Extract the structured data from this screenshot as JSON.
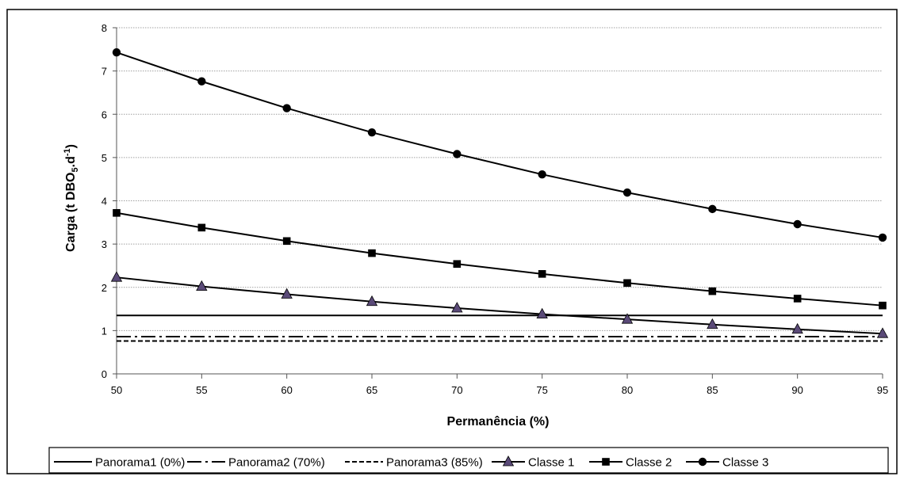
{
  "chart_data": {
    "type": "line",
    "xlabel": "Permanência (%)",
    "ylabel": {
      "prefix": "Carga (t DBO",
      "sub": "5",
      "mid": ".d",
      "sup": "-1",
      "suffix": ")"
    },
    "x": [
      50,
      55,
      60,
      65,
      70,
      75,
      80,
      85,
      90,
      95
    ],
    "xlim": [
      50,
      95
    ],
    "ylim": [
      0,
      8
    ],
    "xticks": [
      50,
      55,
      60,
      65,
      70,
      75,
      80,
      85,
      90,
      95
    ],
    "yticks": [
      0,
      1,
      2,
      3,
      4,
      5,
      6,
      7,
      8
    ],
    "grid": "horizontal",
    "legend_position": "bottom",
    "series": [
      {
        "name": "Panorama1 (0%)",
        "style": "solid",
        "marker": "none",
        "values": [
          1.35,
          1.35,
          1.35,
          1.35,
          1.35,
          1.35,
          1.35,
          1.35,
          1.35,
          1.35
        ]
      },
      {
        "name": "Panorama2 (70%)",
        "style": "dashdot",
        "marker": "none",
        "values": [
          0.86,
          0.86,
          0.86,
          0.86,
          0.86,
          0.86,
          0.86,
          0.86,
          0.86,
          0.86
        ]
      },
      {
        "name": "Panorama3 (85%)",
        "style": "dashed",
        "marker": "none",
        "values": [
          0.76,
          0.76,
          0.76,
          0.76,
          0.76,
          0.76,
          0.76,
          0.76,
          0.76,
          0.76
        ]
      },
      {
        "name": "Classe 1",
        "style": "solid",
        "marker": "triangle",
        "values": [
          2.23,
          2.02,
          1.84,
          1.67,
          1.52,
          1.38,
          1.26,
          1.14,
          1.03,
          0.93
        ]
      },
      {
        "name": "Classe 2",
        "style": "solid",
        "marker": "square",
        "values": [
          3.72,
          3.38,
          3.07,
          2.79,
          2.54,
          2.31,
          2.1,
          1.91,
          1.74,
          1.58
        ]
      },
      {
        "name": "Classe 3",
        "style": "solid",
        "marker": "circle",
        "values": [
          7.43,
          6.76,
          6.14,
          5.58,
          5.08,
          4.61,
          4.19,
          3.81,
          3.46,
          3.15
        ]
      }
    ],
    "colors": {
      "line": "#000000",
      "triangle_fill": "#5a4a78",
      "grid": "#a0a0a0",
      "frame": "#000000"
    }
  }
}
